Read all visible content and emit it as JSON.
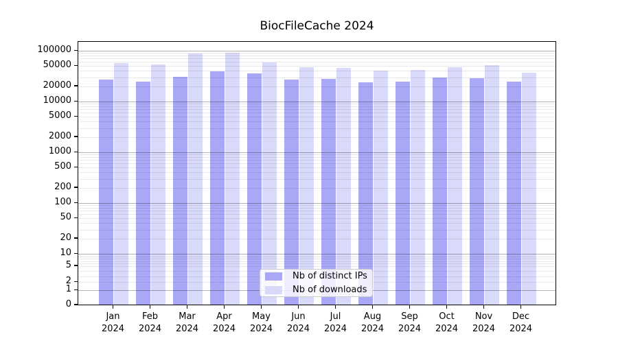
{
  "title": "BiocFileCache 2024",
  "chart_data": {
    "type": "bar",
    "title": "BiocFileCache 2024",
    "months": [
      "Jan",
      "Feb",
      "Mar",
      "Apr",
      "May",
      "Jun",
      "Jul",
      "Aug",
      "Sep",
      "Oct",
      "Nov",
      "Dec"
    ],
    "year": "2024",
    "series": [
      {
        "name": "Nb of distinct IPs",
        "color": "#a8a8f7",
        "values": [
          25500,
          23200,
          29200,
          36900,
          33200,
          25500,
          26300,
          22500,
          23200,
          28000,
          26900,
          23000
        ]
      },
      {
        "name": "Nb of downloads",
        "color": "#d9d9fa",
        "values": [
          54400,
          50500,
          82000,
          86500,
          54900,
          44600,
          43200,
          37600,
          39300,
          44600,
          48400,
          35000
        ]
      }
    ],
    "y_axis": {
      "scale": "symlog",
      "tick_labels": [
        "100000",
        "50000",
        "20000",
        "10000",
        "5000",
        "2000",
        "1000",
        "500",
        "200",
        "100",
        "50",
        "20",
        "10",
        "5",
        "2",
        "1",
        "0"
      ],
      "ylim": [
        0,
        100000
      ],
      "grid": "major and minor horizontal"
    },
    "legend": {
      "position": "lower center",
      "entries": [
        "Nb of distinct IPs",
        "Nb of downloads"
      ]
    }
  }
}
